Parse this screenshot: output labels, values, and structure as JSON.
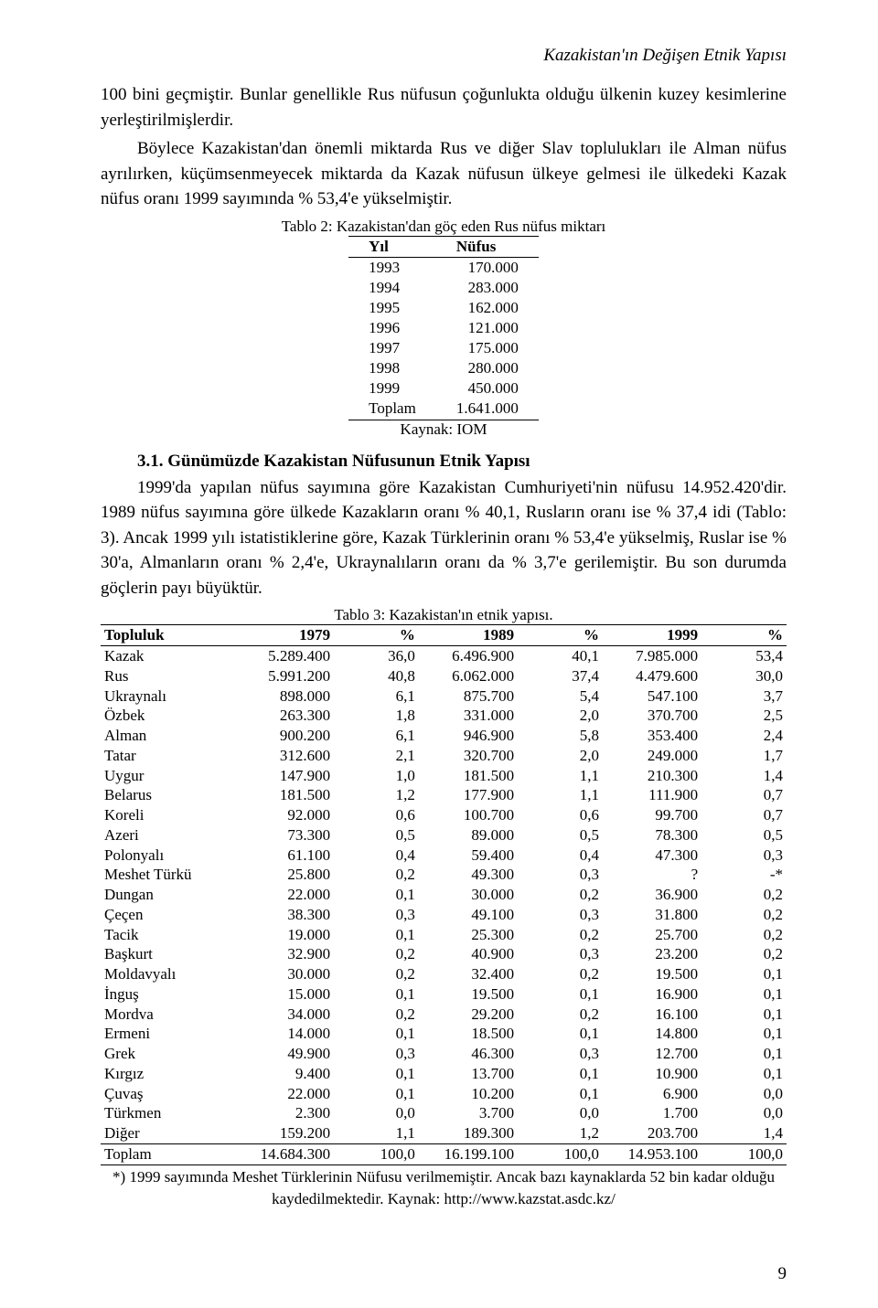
{
  "running_head": "Kazakistan'ın Değişen Etnik Yapısı",
  "para1": "100 bini geçmiştir. Bunlar genellikle Rus nüfusun çoğunlukta olduğu ülkenin kuzey kesimlerine yerleştirilmişlerdir.",
  "para2": "Böylece Kazakistan'dan önemli miktarda Rus ve diğer Slav toplulukları ile Alman nüfus ayrılırken, küçümsenmeyecek miktarda da Kazak nüfusun ülkeye gelmesi ile ülkedeki Kazak nüfus oranı 1999 sayımında % 53,4'e yükselmiştir.",
  "table2": {
    "caption": "Tablo 2: Kazakistan'dan göç eden Rus nüfus miktarı",
    "col_year": "Yıl",
    "col_pop": "Nüfus",
    "rows": [
      {
        "year": "1993",
        "pop": "170.000"
      },
      {
        "year": "1994",
        "pop": "283.000"
      },
      {
        "year": "1995",
        "pop": "162.000"
      },
      {
        "year": "1996",
        "pop": "121.000"
      },
      {
        "year": "1997",
        "pop": "175.000"
      },
      {
        "year": "1998",
        "pop": "280.000"
      },
      {
        "year": "1999",
        "pop": "450.000"
      },
      {
        "year": "Toplam",
        "pop": "1.641.000"
      }
    ],
    "source": "Kaynak: IOM"
  },
  "section_heading": "3.1. Günümüzde Kazakistan Nüfusunun Etnik Yapısı",
  "para3": "1999'da yapılan nüfus sayımına göre Kazakistan Cumhuriyeti'nin nüfusu 14.952.420'dir. 1989 nüfus sayımına göre ülkede Kazakların oranı % 40,1, Rusların oranı ise % 37,4 idi (Tablo: 3). Ancak 1999 yılı istatistiklerine göre, Kazak Türklerinin oranı % 53,4'e yükselmiş, Ruslar ise % 30'a, Almanların oranı % 2,4'e, Ukraynalıların oranı da % 3,7'e gerilemiştir. Bu son durumda göçlerin payı büyüktür.",
  "table3": {
    "caption": "Tablo 3: Kazakistan'ın etnik yapısı.",
    "cols": [
      "Topluluk",
      "1979",
      "%",
      "1989",
      "%",
      "1999",
      "%"
    ],
    "rows": [
      [
        "Kazak",
        "5.289.400",
        "36,0",
        "6.496.900",
        "40,1",
        "7.985.000",
        "53,4"
      ],
      [
        "Rus",
        "5.991.200",
        "40,8",
        "6.062.000",
        "37,4",
        "4.479.600",
        "30,0"
      ],
      [
        "Ukraynalı",
        "898.000",
        "6,1",
        "875.700",
        "5,4",
        "547.100",
        "3,7"
      ],
      [
        "Özbek",
        "263.300",
        "1,8",
        "331.000",
        "2,0",
        "370.700",
        "2,5"
      ],
      [
        "Alman",
        "900.200",
        "6,1",
        "946.900",
        "5,8",
        "353.400",
        "2,4"
      ],
      [
        "Tatar",
        "312.600",
        "2,1",
        "320.700",
        "2,0",
        "249.000",
        "1,7"
      ],
      [
        "Uygur",
        "147.900",
        "1,0",
        "181.500",
        "1,1",
        "210.300",
        "1,4"
      ],
      [
        "Belarus",
        "181.500",
        "1,2",
        "177.900",
        "1,1",
        "111.900",
        "0,7"
      ],
      [
        "Koreli",
        "92.000",
        "0,6",
        "100.700",
        "0,6",
        "99.700",
        "0,7"
      ],
      [
        "Azeri",
        "73.300",
        "0,5",
        "89.000",
        "0,5",
        "78.300",
        "0,5"
      ],
      [
        "Polonyalı",
        "61.100",
        "0,4",
        "59.400",
        "0,4",
        "47.300",
        "0,3"
      ],
      [
        "Meshet Türkü",
        "25.800",
        "0,2",
        "49.300",
        "0,3",
        "?",
        "-*"
      ],
      [
        "Dungan",
        "22.000",
        "0,1",
        "30.000",
        "0,2",
        "36.900",
        "0,2"
      ],
      [
        "Çeçen",
        "38.300",
        "0,3",
        "49.100",
        "0,3",
        "31.800",
        "0,2"
      ],
      [
        "Tacik",
        "19.000",
        "0,1",
        "25.300",
        "0,2",
        "25.700",
        "0,2"
      ],
      [
        "Başkurt",
        "32.900",
        "0,2",
        "40.900",
        "0,3",
        "23.200",
        "0,2"
      ],
      [
        "Moldavyalı",
        "30.000",
        "0,2",
        "32.400",
        "0,2",
        "19.500",
        "0,1"
      ],
      [
        "İnguş",
        "15.000",
        "0,1",
        "19.500",
        "0,1",
        "16.900",
        "0,1"
      ],
      [
        "Mordva",
        "34.000",
        "0,2",
        "29.200",
        "0,2",
        "16.100",
        "0,1"
      ],
      [
        "Ermeni",
        "14.000",
        "0,1",
        "18.500",
        "0,1",
        "14.800",
        "0,1"
      ],
      [
        "Grek",
        "49.900",
        "0,3",
        "46.300",
        "0,3",
        "12.700",
        "0,1"
      ],
      [
        "Kırgız",
        "9.400",
        "0,1",
        "13.700",
        "0,1",
        "10.900",
        "0,1"
      ],
      [
        "Çuvaş",
        "22.000",
        "0,1",
        "10.200",
        "0,1",
        "6.900",
        "0,0"
      ],
      [
        "Türkmen",
        "2.300",
        "0,0",
        "3.700",
        "0,0",
        "1.700",
        "0,0"
      ],
      [
        "Diğer",
        "159.200",
        "1,1",
        "189.300",
        "1,2",
        "203.700",
        "1,4"
      ]
    ],
    "total": [
      "Toplam",
      "14.684.300",
      "100,0",
      "16.199.100",
      "100,0",
      "14.953.100",
      "100,0"
    ],
    "note_a": "*) 1999 sayımında Meshet Türklerinin Nüfusu verilmemiştir. Ancak bazı kaynaklarda 52 bin kadar olduğu",
    "note_b": "kaydedilmektedir. Kaynak: http://www.kazstat.asdc.kz/"
  },
  "pagenum": "9"
}
